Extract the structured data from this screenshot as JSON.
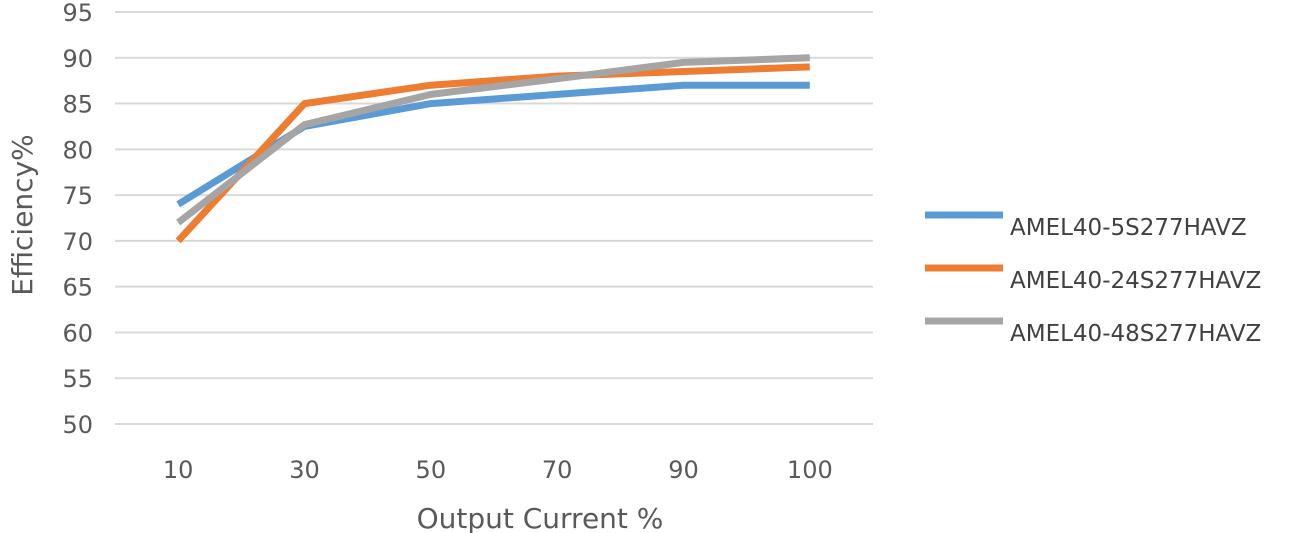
{
  "chart_data": {
    "type": "line",
    "title": "",
    "xlabel": "Output Current %",
    "ylabel": "Efficiency%",
    "categories": [
      "10",
      "30",
      "50",
      "70",
      "90",
      "100"
    ],
    "ylim": [
      50,
      95
    ],
    "yticks": [
      50,
      55,
      60,
      65,
      70,
      75,
      80,
      85,
      90,
      95
    ],
    "grid": "horizontal",
    "legend_position": "right",
    "series": [
      {
        "name": "AMEL40-5S277HAVZ",
        "color": "#5b9bd5",
        "values": [
          74,
          82.5,
          85,
          86,
          87,
          87
        ]
      },
      {
        "name": "AMEL40-24S277HAVZ",
        "color": "#ed7d31",
        "values": [
          70,
          85,
          87,
          88,
          88.5,
          89
        ]
      },
      {
        "name": "AMEL40-48S277HAVZ",
        "color": "#a5a5a5",
        "values": [
          72,
          82.7,
          86,
          87.7,
          89.5,
          90
        ]
      }
    ]
  }
}
